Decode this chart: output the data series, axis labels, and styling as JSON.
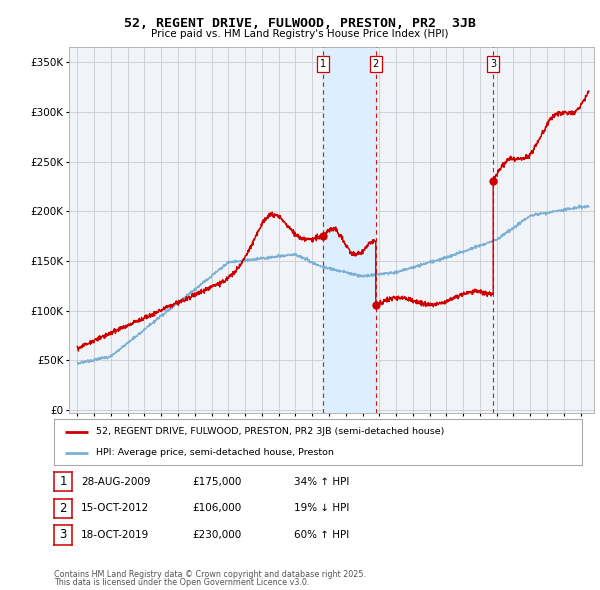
{
  "title": "52, REGENT DRIVE, FULWOOD, PRESTON, PR2  3JB",
  "subtitle": "Price paid vs. HM Land Registry's House Price Index (HPI)",
  "ylabel_ticks": [
    0,
    50000,
    100000,
    150000,
    200000,
    250000,
    300000,
    350000
  ],
  "ylabel_labels": [
    "£0",
    "£50K",
    "£100K",
    "£150K",
    "£200K",
    "£250K",
    "£300K",
    "£350K"
  ],
  "xlim": [
    1994.5,
    2025.8
  ],
  "ylim": [
    -3000,
    365000
  ],
  "sale_events": [
    {
      "num": 1,
      "date": "28-AUG-2009",
      "price": 175000,
      "price_str": "£175,000",
      "pct": "34%",
      "dir": "↑",
      "x": 2009.66
    },
    {
      "num": 2,
      "date": "15-OCT-2012",
      "price": 106000,
      "price_str": "£106,000",
      "pct": "19%",
      "dir": "↓",
      "x": 2012.79
    },
    {
      "num": 3,
      "date": "18-OCT-2019",
      "price": 230000,
      "price_str": "£230,000",
      "pct": "60%",
      "dir": "↑",
      "x": 2019.79
    }
  ],
  "legend_line1": "52, REGENT DRIVE, FULWOOD, PRESTON, PR2 3JB (semi-detached house)",
  "legend_line2": "HPI: Average price, semi-detached house, Preston",
  "footer1": "Contains HM Land Registry data © Crown copyright and database right 2025.",
  "footer2": "This data is licensed under the Open Government Licence v3.0.",
  "line_red": "#cc0000",
  "line_blue": "#7ab0d4",
  "shade_color": "#ddeeff",
  "background": "#f0f4f8",
  "grid_color": "#cccccc"
}
